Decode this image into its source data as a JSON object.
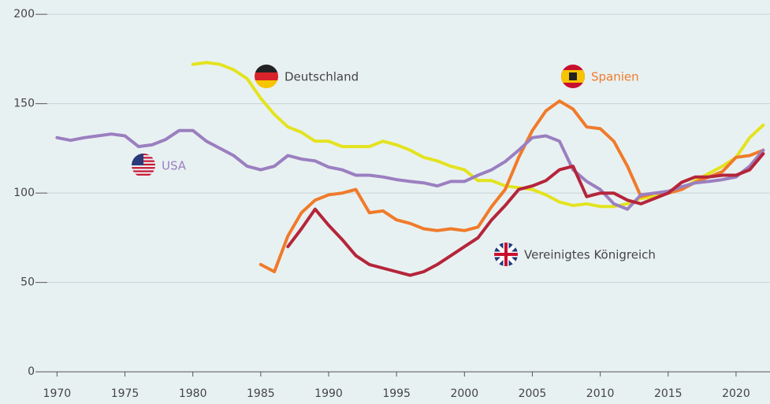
{
  "chart_data": {
    "type": "line",
    "x": [
      1970,
      1971,
      1972,
      1973,
      1974,
      1975,
      1976,
      1977,
      1978,
      1979,
      1980,
      1981,
      1982,
      1983,
      1984,
      1985,
      1986,
      1987,
      1988,
      1989,
      1990,
      1991,
      1992,
      1993,
      1994,
      1995,
      1996,
      1997,
      1998,
      1999,
      2000,
      2001,
      2002,
      2003,
      2004,
      2005,
      2006,
      2007,
      2008,
      2009,
      2010,
      2011,
      2012,
      2013,
      2014,
      2015,
      2016,
      2017,
      2018,
      2019,
      2020,
      2021,
      2022
    ],
    "series": [
      {
        "name": "Deutschland",
        "color": "#e3e31f",
        "values": [
          null,
          null,
          null,
          null,
          null,
          null,
          null,
          null,
          null,
          null,
          172,
          173,
          172,
          169,
          164,
          153,
          144,
          137,
          134,
          129,
          129,
          126,
          126,
          126,
          129,
          127,
          124,
          120,
          118,
          115,
          113,
          107,
          107,
          104,
          103,
          102,
          99,
          95,
          93,
          94,
          92.5,
          92.5,
          94,
          97,
          98,
          100,
          102,
          107,
          111,
          115,
          120,
          131,
          138
        ]
      },
      {
        "name": "Spanien",
        "color": "#f07b2a",
        "values": [
          null,
          null,
          null,
          null,
          null,
          null,
          null,
          null,
          null,
          null,
          null,
          null,
          null,
          null,
          null,
          60,
          56,
          76,
          89,
          96,
          99,
          100,
          102,
          89,
          90,
          85,
          83,
          80,
          79,
          80,
          79,
          81,
          92.5,
          102,
          120,
          135,
          146,
          151.5,
          147,
          137,
          136,
          129,
          115,
          98,
          100,
          100,
          102,
          106,
          109,
          112,
          120,
          121,
          124
        ]
      },
      {
        "name": "USA",
        "color": "#9b7fc0",
        "values": [
          131,
          129.5,
          131,
          132,
          133,
          132,
          126,
          127,
          130,
          135,
          135,
          129,
          125,
          121,
          115,
          113,
          115,
          121,
          119,
          118,
          114.5,
          113,
          110,
          110,
          109,
          107.5,
          106.5,
          105.7,
          104,
          106.5,
          106.5,
          110,
          113,
          117.6,
          124,
          131,
          132,
          129,
          113,
          106.5,
          102,
          94,
          91,
          99,
          100,
          101,
          103.5,
          105.7,
          106.5,
          107.5,
          109,
          115,
          124
        ]
      },
      {
        "name": "Vereinigtes Königreich",
        "color": "#b5253a",
        "values": [
          null,
          null,
          null,
          null,
          null,
          null,
          null,
          null,
          null,
          null,
          null,
          null,
          null,
          null,
          null,
          null,
          null,
          70,
          80,
          91,
          82,
          74,
          65,
          60,
          58,
          56,
          54,
          56,
          60,
          65,
          70,
          75,
          85,
          93,
          102,
          104,
          107,
          113,
          115,
          98,
          100,
          100,
          96,
          94,
          97,
          100,
          106,
          109,
          109,
          110,
          110,
          113,
          122
        ]
      }
    ],
    "xlim": [
      1965.8,
      2022.5
    ],
    "ylim": [
      -18,
      208
    ],
    "xticks": [
      1970,
      1975,
      1980,
      1985,
      1990,
      1995,
      2000,
      2005,
      2010,
      2015,
      2020
    ],
    "yticks": [
      0,
      50,
      100,
      150,
      200
    ],
    "grid": true
  }
}
